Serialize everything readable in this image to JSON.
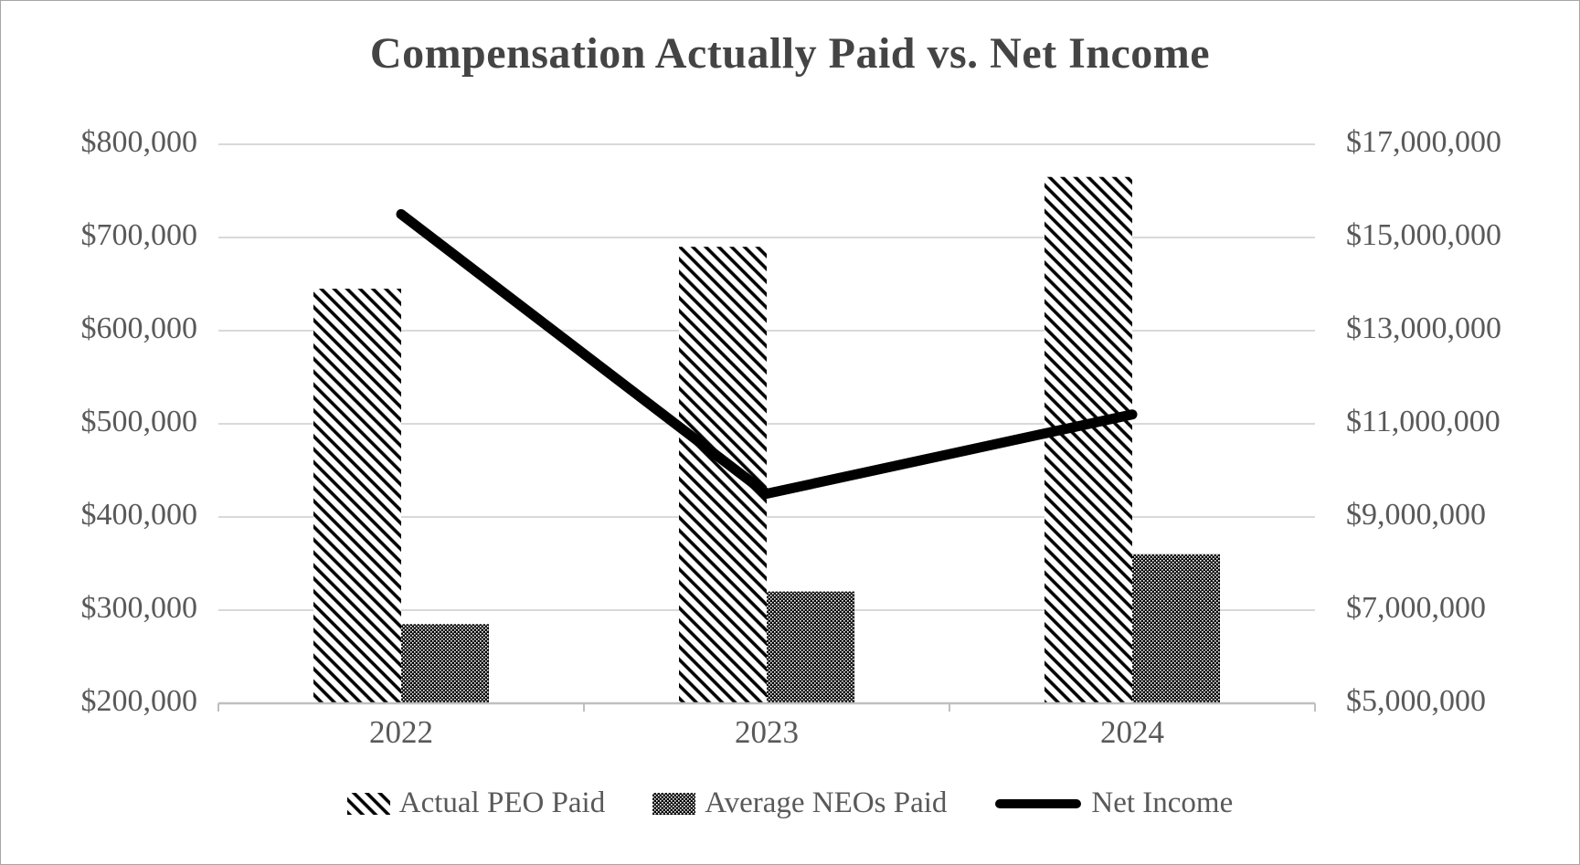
{
  "chart_data": {
    "type": "combo",
    "title": "Compensation Actually Paid vs. Net Income",
    "categories": [
      "2022",
      "2023",
      "2024"
    ],
    "series": [
      {
        "name": "Actual PEO Paid",
        "type": "bar",
        "axis": "left",
        "pattern": "diagonal-hatch",
        "values": [
          645000,
          690000,
          765000
        ]
      },
      {
        "name": "Average NEOs Paid",
        "type": "bar",
        "axis": "left",
        "pattern": "dense-dot",
        "values": [
          285000,
          320000,
          360000
        ]
      },
      {
        "name": "Net Income",
        "type": "line",
        "axis": "right",
        "color": "#000000",
        "values": [
          15500000,
          9500000,
          11200000
        ]
      }
    ],
    "left_axis": {
      "min": 200000,
      "max": 800000,
      "step": 100000,
      "tick_labels": [
        "$800,000",
        "$700,000",
        "$600,000",
        "$500,000",
        "$400,000",
        "$300,000",
        "$200,000"
      ]
    },
    "right_axis": {
      "min": 5000000,
      "max": 17000000,
      "step": 2000000,
      "tick_labels": [
        "$17,000,000",
        "$15,000,000",
        "$13,000,000",
        "$11,000,000",
        "$9,000,000",
        "$7,000,000",
        "$5,000,000"
      ]
    },
    "grid": true,
    "legend_position": "bottom",
    "colors": {
      "gridline": "#d9d9d9",
      "axis_line": "#bfbfbf",
      "tick_text": "#595959",
      "title_text": "#444444",
      "net_income_line": "#000000",
      "hatch_stroke": "#000000",
      "background": "#ffffff"
    }
  }
}
